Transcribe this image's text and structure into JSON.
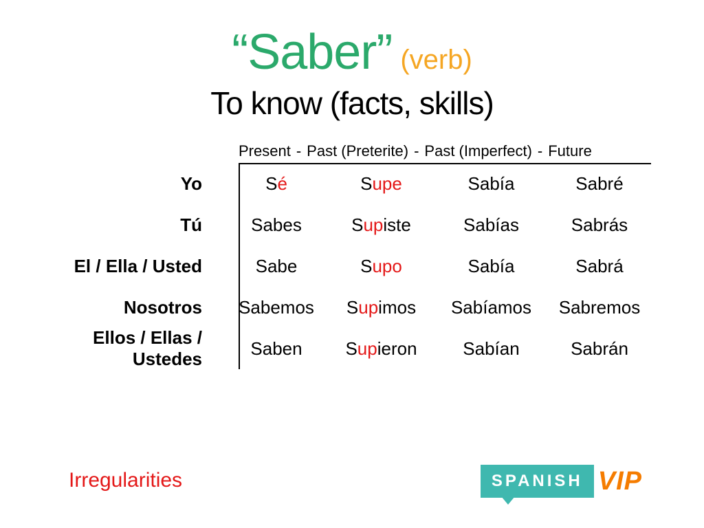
{
  "header": {
    "verb": "“Saber”",
    "pos": "(verb)",
    "translation": "To know (facts, skills)"
  },
  "tenses": {
    "t1": "Present",
    "t2": "Past (Preterite)",
    "t3": "Past (Imperfect)",
    "t4": "Future",
    "sep": " - "
  },
  "rows": [
    {
      "pronoun": "Yo",
      "cells": [
        [
          {
            "t": "S",
            "i": false
          },
          {
            "t": "é",
            "i": true
          }
        ],
        [
          {
            "t": "S",
            "i": false
          },
          {
            "t": "upe",
            "i": true
          }
        ],
        [
          {
            "t": "Sabía",
            "i": false
          }
        ],
        [
          {
            "t": "Sabré",
            "i": false
          }
        ]
      ]
    },
    {
      "pronoun": "Tú",
      "cells": [
        [
          {
            "t": "Sabes",
            "i": false
          }
        ],
        [
          {
            "t": "S",
            "i": false
          },
          {
            "t": "up",
            "i": true
          },
          {
            "t": "iste",
            "i": false
          }
        ],
        [
          {
            "t": "Sabías",
            "i": false
          }
        ],
        [
          {
            "t": "Sabrás",
            "i": false
          }
        ]
      ]
    },
    {
      "pronoun": "El / Ella / Usted",
      "cells": [
        [
          {
            "t": "Sabe",
            "i": false
          }
        ],
        [
          {
            "t": "S",
            "i": false
          },
          {
            "t": "upo",
            "i": true
          }
        ],
        [
          {
            "t": "Sabía",
            "i": false
          }
        ],
        [
          {
            "t": "Sabrá",
            "i": false
          }
        ]
      ]
    },
    {
      "pronoun": "Nosotros",
      "cells": [
        [
          {
            "t": "Sabemos",
            "i": false
          }
        ],
        [
          {
            "t": "S",
            "i": false
          },
          {
            "t": "up",
            "i": true
          },
          {
            "t": "imos",
            "i": false
          }
        ],
        [
          {
            "t": "Sabíamos",
            "i": false
          }
        ],
        [
          {
            "t": "Sabremos",
            "i": false
          }
        ]
      ]
    },
    {
      "pronoun": "Ellos / Ellas / Ustedes",
      "cells": [
        [
          {
            "t": "Saben",
            "i": false
          }
        ],
        [
          {
            "t": "S",
            "i": false
          },
          {
            "t": "up",
            "i": true
          },
          {
            "t": "ieron",
            "i": false
          }
        ],
        [
          {
            "t": "Sabían",
            "i": false
          }
        ],
        [
          {
            "t": "Sabrán",
            "i": false
          }
        ]
      ]
    }
  ],
  "footer": {
    "irregularities": "Irregularities",
    "logo_spanish": "SPANISH",
    "logo_vip": "VIP"
  },
  "colors": {
    "verb_title": "#2ba96b",
    "pos": "#f5a623",
    "irregular": "#e41818",
    "logo_bg": "#3fb8af",
    "logo_vip": "#f57c00",
    "text": "#000000",
    "background": "#ffffff"
  }
}
